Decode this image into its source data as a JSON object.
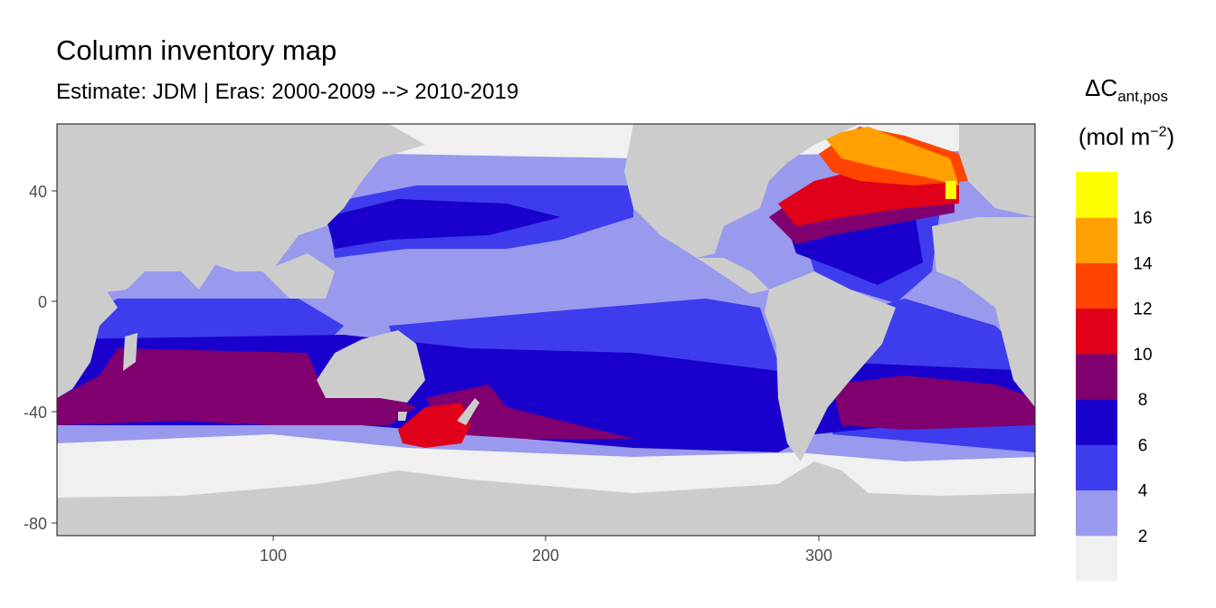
{
  "title": "Column inventory map",
  "subtitle": "Estimate: JDM  | Eras: 2000-2009 --> 2010-2019",
  "legend": {
    "symbol": "ΔC",
    "subscript": "ant,pos",
    "unit_prefix": "(mol m",
    "unit_exponent": "−2",
    "unit_suffix": ")",
    "breaks": [
      "2",
      "4",
      "6",
      "8",
      "10",
      "12",
      "14",
      "16"
    ],
    "bins": [
      {
        "range": "<2",
        "color": "#f0f0f0"
      },
      {
        "range": "2-4",
        "color": "#9999ee"
      },
      {
        "range": "4-6",
        "color": "#3d3ded"
      },
      {
        "range": "6-8",
        "color": "#1a00cc"
      },
      {
        "range": "8-10",
        "color": "#800070"
      },
      {
        "range": "10-12",
        "color": "#e0001a"
      },
      {
        "range": "12-14",
        "color": "#ff4400"
      },
      {
        "range": "14-16",
        "color": "#ffa000"
      },
      {
        "range": ">16",
        "color": "#ffff00"
      }
    ]
  },
  "chart_data": {
    "type": "heatmap",
    "title": "Column inventory map",
    "subtitle": "Estimate: JDM  | Eras: 2000-2009 --> 2010-2019",
    "x_ticks": [
      100,
      200,
      300
    ],
    "y_ticks": [
      40,
      0,
      -40,
      -80
    ],
    "xlim": [
      20,
      380
    ],
    "ylim": [
      -85,
      65
    ],
    "land_color": "#cccccc",
    "panel_border": "#333333"
  }
}
